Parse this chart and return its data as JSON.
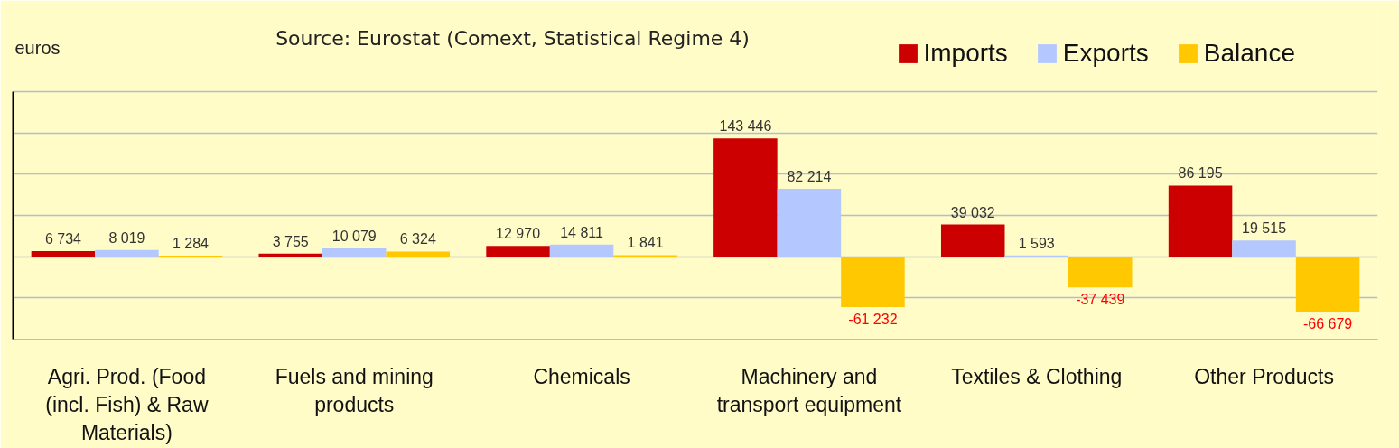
{
  "chart_data": {
    "type": "bar",
    "ylabel": "euros",
    "annotations": [
      "Source: Eurostat (Comext, Statistical Regime 4)"
    ],
    "categories": [
      "Agri. Prod. (Food (incl. Fish) & Raw Materials)",
      "Fuels and mining products",
      "Chemicals",
      "Machinery and transport equipment",
      "Textiles & Clothing",
      "Other Products"
    ],
    "series": [
      {
        "name": "Imports",
        "color": "#cc0000",
        "values": [
          6734,
          3755,
          12970,
          143446,
          39032,
          86195
        ],
        "value_labels": [
          "6 734",
          "3 755",
          "12 970",
          "143 446",
          "39 032",
          "86 195"
        ]
      },
      {
        "name": "Exports",
        "color": "#b4c8ff",
        "values": [
          8019,
          10079,
          14811,
          82214,
          1593,
          19515
        ],
        "value_labels": [
          "8 019",
          "10 079",
          "14 811",
          "82 214",
          "1 593",
          "19 515"
        ]
      },
      {
        "name": "Balance",
        "color": "#ffc800",
        "values": [
          1284,
          6324,
          1841,
          -61232,
          -37439,
          -66679
        ],
        "value_labels": [
          "1 284",
          "6 324",
          "1 841",
          "-61 232",
          "-37 439",
          "-66 679"
        ]
      }
    ],
    "ylim": [
      -100000,
      200000
    ],
    "yticks": [
      {
        "value": -100000,
        "label": null
      },
      {
        "value": -50000,
        "label": null
      },
      {
        "value": 0,
        "label": null
      },
      {
        "value": 50000,
        "label": null
      },
      {
        "value": 100000,
        "label": null
      },
      {
        "value": 150000,
        "label": null
      },
      {
        "value": 200000,
        "label": null
      }
    ],
    "grid": "y",
    "legend": "top right"
  }
}
